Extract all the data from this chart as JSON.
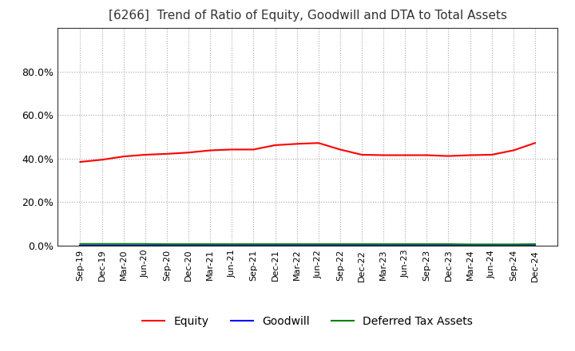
{
  "title": "[6266]  Trend of Ratio of Equity, Goodwill and DTA to Total Assets",
  "x_labels": [
    "Sep-19",
    "Dec-19",
    "Mar-20",
    "Jun-20",
    "Sep-20",
    "Dec-20",
    "Mar-21",
    "Jun-21",
    "Sep-21",
    "Dec-21",
    "Mar-22",
    "Jun-22",
    "Sep-22",
    "Dec-22",
    "Mar-23",
    "Jun-23",
    "Sep-23",
    "Dec-23",
    "Mar-24",
    "Jun-24",
    "Sep-24",
    "Dec-24"
  ],
  "equity": [
    0.385,
    0.395,
    0.41,
    0.418,
    0.422,
    0.428,
    0.438,
    0.442,
    0.442,
    0.462,
    0.468,
    0.472,
    0.442,
    0.418,
    0.416,
    0.416,
    0.416,
    0.412,
    0.416,
    0.418,
    0.438,
    0.472
  ],
  "goodwill": [
    0.0,
    0.0,
    0.0,
    0.0,
    0.0,
    0.0,
    0.0,
    0.0,
    0.0,
    0.0,
    0.0,
    0.0,
    0.0,
    0.0,
    0.0,
    0.0,
    0.0,
    0.0,
    0.0,
    0.0,
    0.0,
    0.0
  ],
  "dta": [
    0.008,
    0.008,
    0.008,
    0.008,
    0.007,
    0.007,
    0.007,
    0.007,
    0.007,
    0.007,
    0.007,
    0.007,
    0.007,
    0.007,
    0.007,
    0.007,
    0.007,
    0.007,
    0.006,
    0.006,
    0.006,
    0.007
  ],
  "equity_color": "#ff0000",
  "goodwill_color": "#0000ff",
  "dta_color": "#008000",
  "ylim": [
    0.0,
    1.0
  ],
  "yticks": [
    0.0,
    0.2,
    0.4,
    0.6,
    0.8
  ],
  "background_color": "#ffffff",
  "grid_color": "#aaaaaa",
  "title_fontsize": 11
}
